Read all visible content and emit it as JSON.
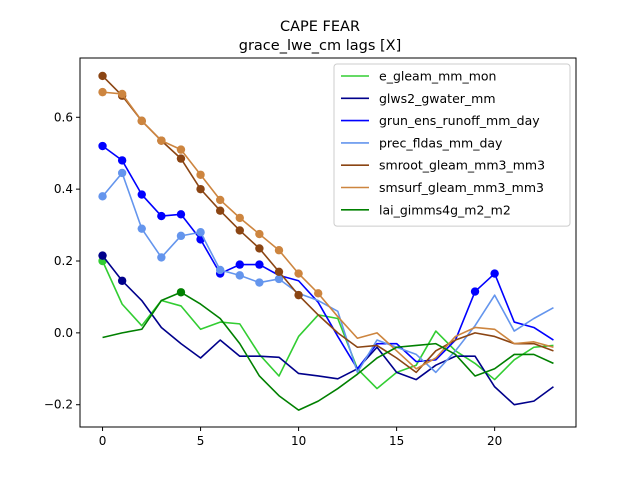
{
  "chart_data": {
    "type": "line",
    "title": "CAPE FEAR",
    "subtitle": "grace_lwe_cm lags [X]",
    "xlabel": "",
    "ylabel": "",
    "xlim": [
      -1.15,
      24.15
    ],
    "ylim": [
      -0.262,
      0.765
    ],
    "x_ticks": [
      0,
      5,
      10,
      15,
      20
    ],
    "x_tick_labels": [
      "0",
      "5",
      "10",
      "15",
      "20"
    ],
    "y_ticks": [
      -0.2,
      0.0,
      0.2,
      0.4,
      0.6
    ],
    "y_tick_labels": [
      "−0.2",
      "0.0",
      "0.2",
      "0.4",
      "0.6"
    ],
    "legend_position": "top-right",
    "grid": false,
    "x": [
      0,
      1,
      2,
      3,
      4,
      5,
      6,
      7,
      8,
      9,
      10,
      11,
      12,
      13,
      14,
      15,
      16,
      17,
      18,
      19,
      20,
      21,
      22,
      23
    ],
    "series": [
      {
        "name": "e_gleam_mm_mon",
        "color": "#32cd32",
        "values": [
          0.2,
          0.08,
          0.02,
          0.09,
          0.075,
          0.01,
          0.03,
          0.025,
          -0.06,
          -0.12,
          -0.01,
          0.05,
          0.04,
          -0.1,
          -0.155,
          -0.11,
          -0.09,
          0.005,
          -0.05,
          -0.085,
          -0.13,
          -0.075,
          -0.04,
          -0.035
        ],
        "markers": [
          0
        ]
      },
      {
        "name": "glws2_gwater_mm",
        "color": "#00008b",
        "values": [
          0.215,
          0.145,
          0.09,
          0.015,
          -0.03,
          -0.07,
          -0.02,
          -0.065,
          -0.065,
          -0.068,
          -0.113,
          -0.12,
          -0.128,
          -0.1,
          -0.04,
          -0.11,
          -0.13,
          -0.09,
          -0.065,
          -0.065,
          -0.15,
          -0.2,
          -0.19,
          -0.15
        ],
        "markers": [
          0,
          1
        ]
      },
      {
        "name": "grun_ens_runoff_mm_day",
        "color": "#0000ff",
        "values": [
          0.52,
          0.48,
          0.385,
          0.325,
          0.33,
          0.26,
          0.165,
          0.19,
          0.19,
          0.16,
          0.145,
          0.085,
          -0.01,
          -0.1,
          -0.03,
          -0.03,
          -0.08,
          -0.075,
          -0.02,
          0.115,
          0.165,
          0.03,
          0.015,
          -0.02
        ],
        "markers": [
          0,
          1,
          2,
          3,
          4,
          5,
          6,
          7,
          8,
          19,
          20
        ]
      },
      {
        "name": "prec_fldas_mm_day",
        "color": "#6495ed",
        "values": [
          0.38,
          0.445,
          0.29,
          0.21,
          0.27,
          0.28,
          0.175,
          0.16,
          0.14,
          0.15,
          0.11,
          0.09,
          0.06,
          -0.11,
          -0.02,
          -0.04,
          -0.06,
          -0.11,
          -0.05,
          0.02,
          0.105,
          0.005,
          0.04,
          0.07
        ],
        "markers": [
          0,
          1,
          2,
          3,
          4,
          5,
          6,
          7,
          8,
          9
        ]
      },
      {
        "name": "smroot_gleam_mm3_mm3",
        "color": "#8b4513",
        "values": [
          0.715,
          0.66,
          0.59,
          0.535,
          0.485,
          0.4,
          0.34,
          0.285,
          0.235,
          0.17,
          0.105,
          0.05,
          0.0,
          -0.04,
          -0.035,
          -0.07,
          -0.11,
          -0.05,
          -0.02,
          0.0,
          -0.01,
          -0.03,
          -0.03,
          -0.05
        ],
        "markers": [
          0,
          1,
          2,
          3,
          4,
          5,
          6,
          7,
          8,
          9,
          10
        ]
      },
      {
        "name": "smsurf_gleam_mm3_mm3",
        "color": "#cd853f",
        "values": [
          0.67,
          0.665,
          0.59,
          0.535,
          0.51,
          0.44,
          0.37,
          0.32,
          0.275,
          0.23,
          0.165,
          0.11,
          0.045,
          -0.015,
          0.0,
          -0.05,
          -0.1,
          -0.07,
          -0.01,
          0.015,
          0.01,
          -0.03,
          -0.025,
          -0.04
        ],
        "markers": [
          0,
          1,
          2,
          3,
          4,
          5,
          6,
          7,
          8,
          9,
          10,
          11
        ]
      },
      {
        "name": "lai_gimms4g_m2_m2",
        "color": "#008000",
        "values": [
          -0.013,
          0.0,
          0.01,
          0.09,
          0.113,
          0.08,
          0.04,
          -0.03,
          -0.12,
          -0.175,
          -0.215,
          -0.19,
          -0.155,
          -0.115,
          -0.07,
          -0.04,
          -0.035,
          -0.03,
          -0.06,
          -0.12,
          -0.1,
          -0.06,
          -0.06,
          -0.085
        ],
        "markers": [
          4
        ]
      }
    ]
  }
}
